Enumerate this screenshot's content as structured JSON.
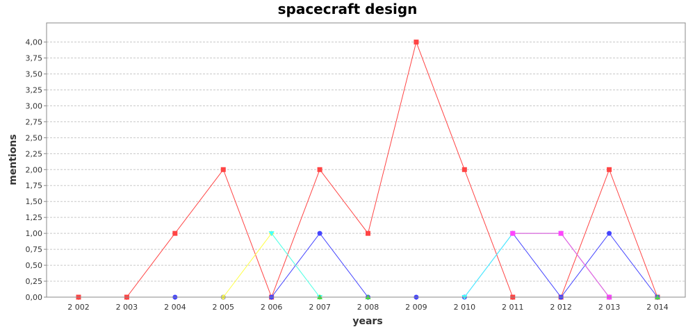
{
  "chart_data": {
    "type": "line",
    "title": "spacecraft design",
    "xlabel": "years",
    "ylabel": "mentions",
    "categories": [
      "2 002",
      "2 003",
      "2 004",
      "2 005",
      "2 006",
      "2 007",
      "2 008",
      "2 009",
      "2 010",
      "2 011",
      "2 012",
      "2 013",
      "2 014"
    ],
    "ylim": [
      0,
      4.3
    ],
    "yticks": [
      "0,00",
      "0,25",
      "0,50",
      "0,75",
      "1,00",
      "1,25",
      "1,50",
      "1,75",
      "2,00",
      "2,25",
      "2,50",
      "2,75",
      "3,00",
      "3,25",
      "3,50",
      "3,75",
      "4,00"
    ],
    "grid": true,
    "series": [
      {
        "color": "#ff4444",
        "marker": "square",
        "values": [
          0,
          0,
          1,
          2,
          0,
          2,
          1,
          4,
          2,
          0,
          0,
          2,
          0
        ]
      },
      {
        "color": "#4444ff",
        "marker": "circle",
        "values": [
          null,
          null,
          0,
          0,
          0,
          1,
          0,
          0,
          0,
          1,
          0,
          1,
          0
        ]
      },
      {
        "color": "#ffff44",
        "marker": "diamond",
        "values": [
          null,
          null,
          null,
          0,
          1,
          0,
          null,
          null,
          null,
          1,
          1,
          0,
          null
        ]
      },
      {
        "color": "#44ffff",
        "marker": "triangle-down",
        "values": [
          null,
          null,
          null,
          null,
          1,
          0,
          null,
          null,
          0,
          1,
          1,
          0,
          null
        ]
      },
      {
        "color": "#44dd44",
        "marker": "triangle-up",
        "values": [
          null,
          null,
          null,
          null,
          null,
          0,
          0,
          null,
          null,
          1,
          1,
          0,
          0
        ]
      },
      {
        "color": "#ff44ff",
        "marker": "square",
        "values": [
          null,
          null,
          null,
          null,
          null,
          null,
          null,
          null,
          null,
          1,
          1,
          0,
          null
        ]
      }
    ]
  }
}
